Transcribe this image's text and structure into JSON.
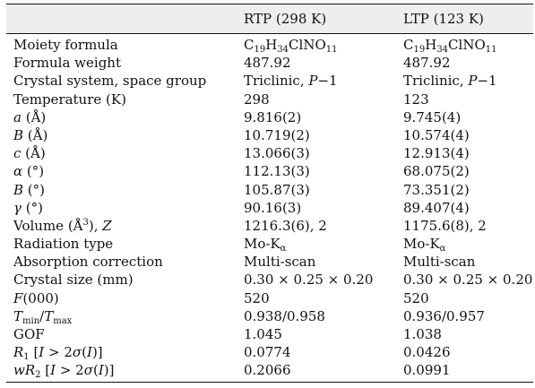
{
  "header": {
    "param": "",
    "rtp": "RTP (298 K)",
    "ltp": "LTP (123 K)"
  },
  "rows": [
    {
      "param": "Moiety formula",
      "rtp": "C19H34ClNO11",
      "ltp": "C19H34ClNO11"
    },
    {
      "param": "Formula weight",
      "rtp": "487.92",
      "ltp": "487.92"
    },
    {
      "param": "Crystal system, space group",
      "rtp": "Triclinic, P−1",
      "ltp": "Triclinic, P−1"
    },
    {
      "param": "Temperature (K)",
      "rtp": "298",
      "ltp": "123"
    },
    {
      "param": "a (Å)",
      "rtp": "9.816(2)",
      "ltp": "9.745(4)"
    },
    {
      "param": "B (Å)",
      "rtp": "10.719(2)",
      "ltp": "10.574(4)"
    },
    {
      "param": "c (Å)",
      "rtp": "13.066(3)",
      "ltp": "12.913(4)"
    },
    {
      "param": "α (°)",
      "rtp": "112.13(3)",
      "ltp": "68.075(2)"
    },
    {
      "param": "B (°)",
      "rtp": "105.87(3)",
      "ltp": "73.351(2)"
    },
    {
      "param": "γ (°)",
      "rtp": "90.16(3)",
      "ltp": "89.407(4)"
    },
    {
      "param": "Volume (Å3), Z",
      "rtp": "1216.3(6), 2",
      "ltp": "1175.6(8), 2"
    },
    {
      "param": "Radiation type",
      "rtp": "Mo-Kα",
      "ltp": "Mo-Kα"
    },
    {
      "param": "Absorption correction",
      "rtp": "Multi-scan",
      "ltp": "Multi-scan"
    },
    {
      "param": "Crystal size (mm)",
      "rtp": "0.30 × 0.25 × 0.20",
      "ltp": "0.30 × 0.25 × 0.20"
    },
    {
      "param": "F(000)",
      "rtp": "520",
      "ltp": "520"
    },
    {
      "param": "Tmin/Tmax",
      "rtp": "0.938/0.958",
      "ltp": "0.936/0.957"
    },
    {
      "param": "GOF",
      "rtp": "1.045",
      "ltp": "1.038"
    },
    {
      "param": "R1 [I > 2σ(I)]",
      "rtp": "0.0774",
      "ltp": "0.0426"
    },
    {
      "param": "wR2 [I > 2σ(I)]",
      "rtp": "0.2066",
      "ltp": "0.0991"
    }
  ]
}
